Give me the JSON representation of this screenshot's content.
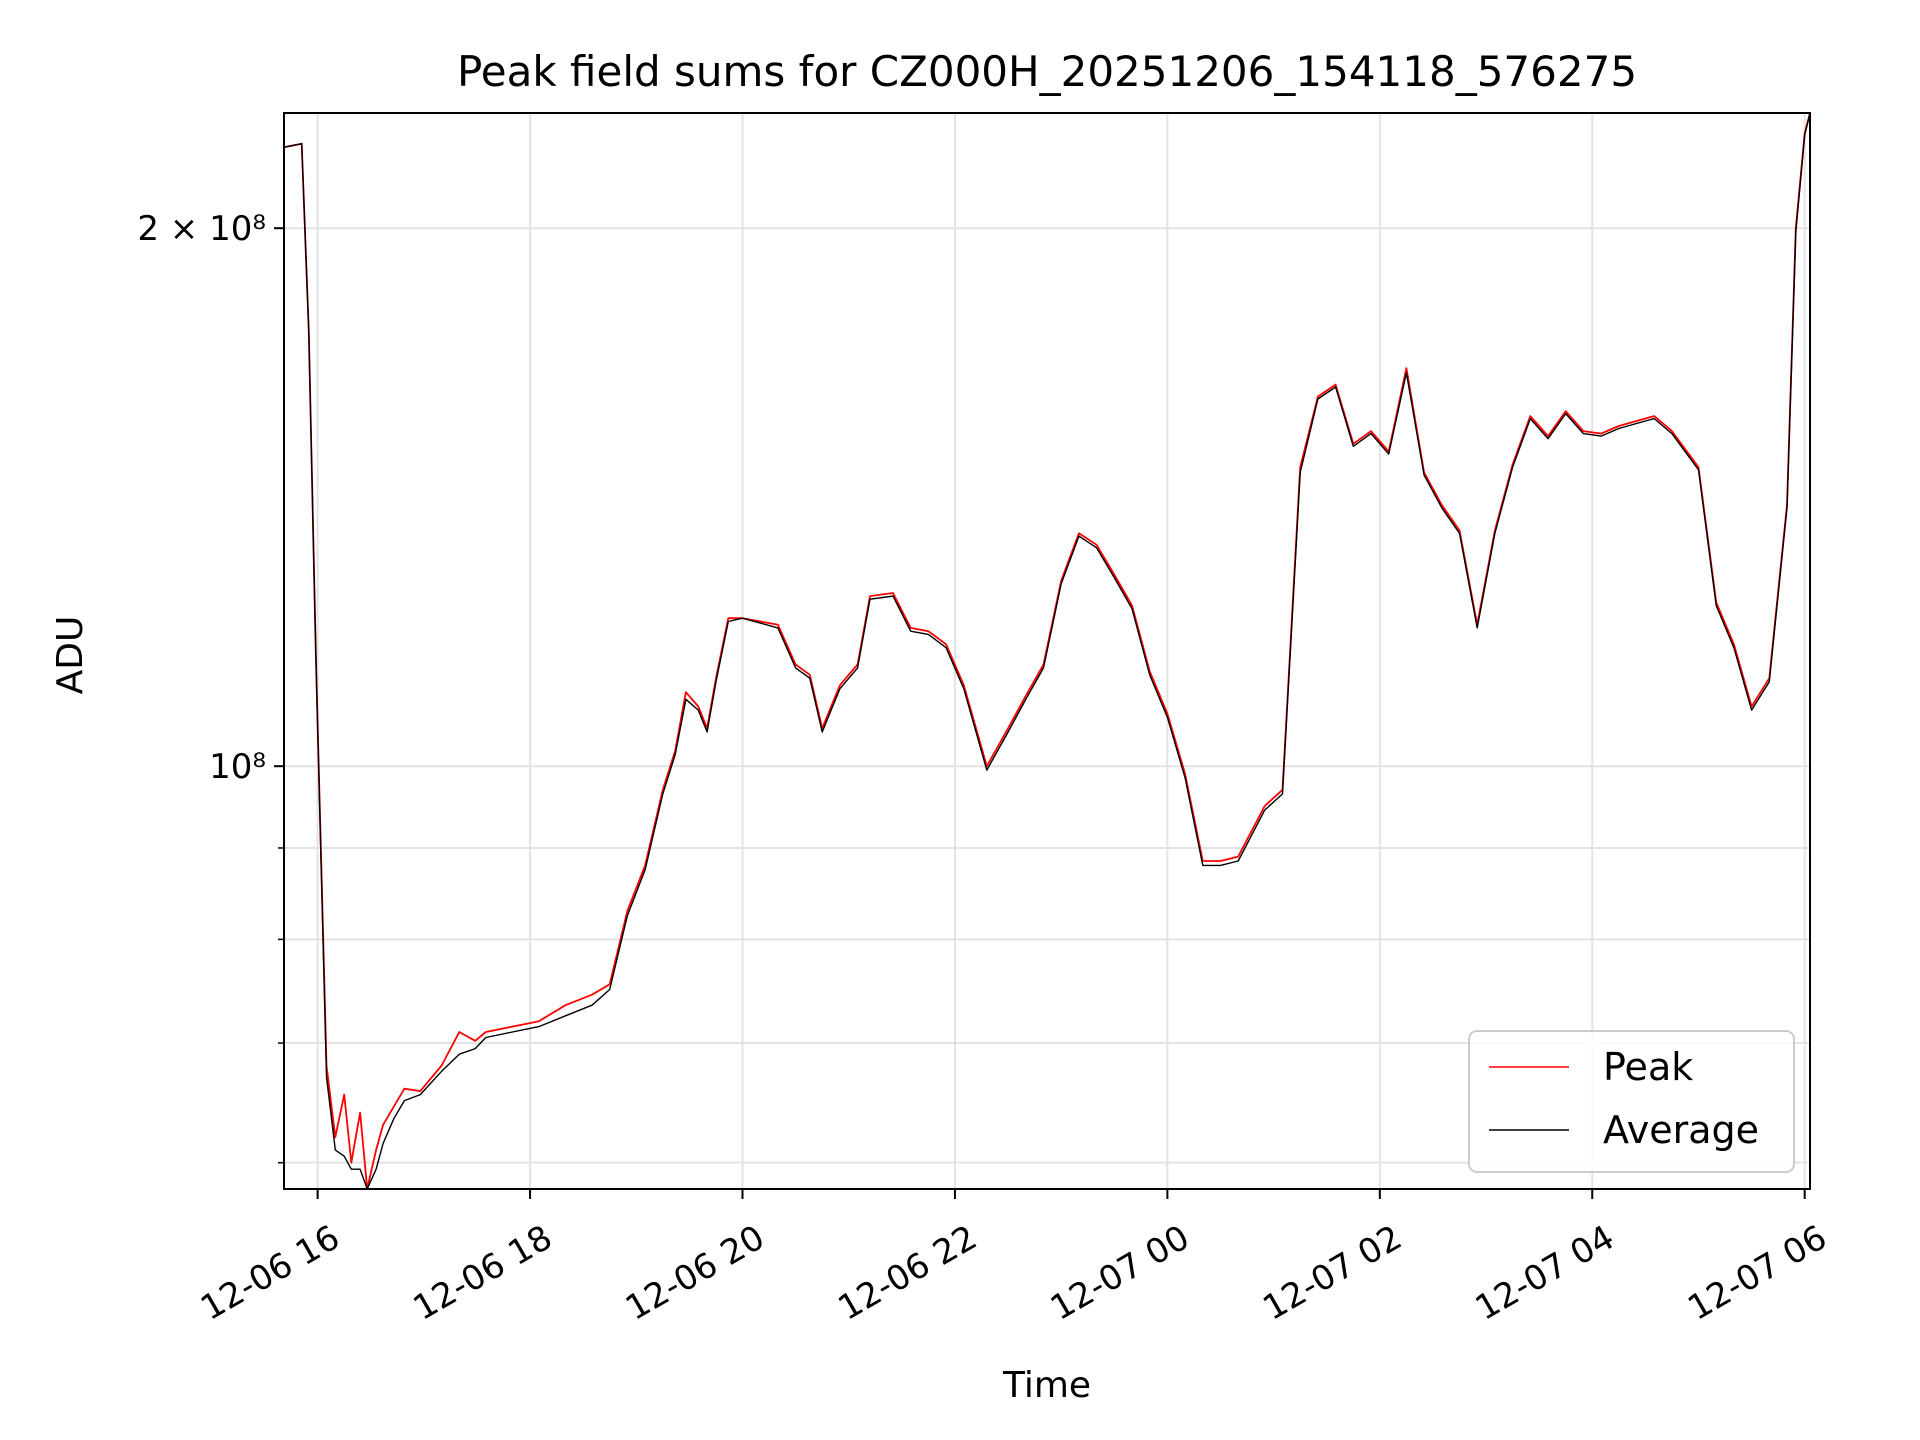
{
  "chart_data": {
    "type": "line",
    "title": "Peak field sums for CZ000H_20251206_154118_576275",
    "xlabel": "Time",
    "ylabel": "ADU",
    "x_axis": {
      "kind": "datetime",
      "range": [
        "2025-12-06T15:41",
        "2025-12-07T06:03"
      ],
      "tick_values": [
        "2025-12-06T16:00",
        "2025-12-06T18:00",
        "2025-12-06T20:00",
        "2025-12-06T22:00",
        "2025-12-07T00:00",
        "2025-12-07T02:00",
        "2025-12-07T04:00",
        "2025-12-07T06:00"
      ],
      "tick_labels": [
        "12-06 16",
        "12-06 18",
        "12-06 20",
        "12-06 22",
        "12-07 00",
        "12-07 02",
        "12-07 04",
        "12-07 06"
      ],
      "tick_rotation_deg": 30
    },
    "y_axis": {
      "scale": "log",
      "range": [
        58000000,
        232000000
      ],
      "major_ticks": [
        100000000,
        200000000
      ],
      "major_tick_labels": [
        "10⁸",
        "2 × 10⁸"
      ],
      "minor_ticks": [
        60000000,
        70000000,
        80000000,
        90000000
      ]
    },
    "grid": true,
    "legend_position": "lower-right",
    "series": [
      {
        "name": "Peak",
        "color": "#ff0000",
        "x": [
          "2025-12-06T15:41",
          "2025-12-06T15:51",
          "2025-12-06T15:55",
          "2025-12-06T15:59",
          "2025-12-06T16:05",
          "2025-12-06T16:10",
          "2025-12-06T16:15",
          "2025-12-06T16:19",
          "2025-12-06T16:24",
          "2025-12-06T16:28",
          "2025-12-06T16:33",
          "2025-12-06T16:37",
          "2025-12-06T16:43",
          "2025-12-06T16:49",
          "2025-12-06T16:58",
          "2025-12-06T17:10",
          "2025-12-06T17:20",
          "2025-12-06T17:29",
          "2025-12-06T17:35",
          "2025-12-06T17:50",
          "2025-12-06T18:05",
          "2025-12-06T18:20",
          "2025-12-06T18:35",
          "2025-12-06T18:45",
          "2025-12-06T18:55",
          "2025-12-06T19:05",
          "2025-12-06T19:15",
          "2025-12-06T19:22",
          "2025-12-06T19:28",
          "2025-12-06T19:35",
          "2025-12-06T19:40",
          "2025-12-06T19:45",
          "2025-12-06T19:52",
          "2025-12-06T20:00",
          "2025-12-06T20:20",
          "2025-12-06T20:30",
          "2025-12-06T20:38",
          "2025-12-06T20:45",
          "2025-12-06T20:55",
          "2025-12-06T21:05",
          "2025-12-06T21:12",
          "2025-12-06T21:25",
          "2025-12-06T21:35",
          "2025-12-06T21:45",
          "2025-12-06T21:55",
          "2025-12-06T22:05",
          "2025-12-06T22:18",
          "2025-12-06T22:30",
          "2025-12-06T22:40",
          "2025-12-06T22:50",
          "2025-12-06T23:00",
          "2025-12-06T23:10",
          "2025-12-06T23:20",
          "2025-12-06T23:30",
          "2025-12-06T23:40",
          "2025-12-06T23:50",
          "2025-12-07T00:00",
          "2025-12-07T00:10",
          "2025-12-07T00:20",
          "2025-12-07T00:30",
          "2025-12-07T00:40",
          "2025-12-07T00:55",
          "2025-12-07T01:05",
          "2025-12-07T01:15",
          "2025-12-07T01:25",
          "2025-12-07T01:35",
          "2025-12-07T01:45",
          "2025-12-07T01:55",
          "2025-12-07T02:05",
          "2025-12-07T02:15",
          "2025-12-07T02:25",
          "2025-12-07T02:35",
          "2025-12-07T02:45",
          "2025-12-07T02:55",
          "2025-12-07T03:05",
          "2025-12-07T03:15",
          "2025-12-07T03:25",
          "2025-12-07T03:35",
          "2025-12-07T03:45",
          "2025-12-07T03:55",
          "2025-12-07T04:05",
          "2025-12-07T04:15",
          "2025-12-07T04:25",
          "2025-12-07T04:35",
          "2025-12-07T04:45",
          "2025-12-07T05:00",
          "2025-12-07T05:10",
          "2025-12-07T05:20",
          "2025-12-07T05:30",
          "2025-12-07T05:40",
          "2025-12-07T05:50",
          "2025-12-07T05:55",
          "2025-12-07T06:00",
          "2025-12-07T06:03"
        ],
        "y": [
          222000000,
          223000000,
          175000000,
          115000000,
          68000000,
          62000000,
          65500000,
          60000000,
          64000000,
          58000000,
          61000000,
          63000000,
          64500000,
          66000000,
          65800000,
          68000000,
          71000000,
          70200000,
          71000000,
          71500000,
          72000000,
          73500000,
          74500000,
          75500000,
          83000000,
          88000000,
          97000000,
          102000000,
          110000000,
          108000000,
          105000000,
          112000000,
          121000000,
          121000000,
          120000000,
          114000000,
          112500000,
          105000000,
          111000000,
          114000000,
          124500000,
          125000000,
          119500000,
          119000000,
          117000000,
          111000000,
          100000000,
          105000000,
          109500000,
          114000000,
          127000000,
          135000000,
          133000000,
          128000000,
          123000000,
          113000000,
          107000000,
          99000000,
          88500000,
          88500000,
          89000000,
          95000000,
          97000000,
          147000000,
          161000000,
          163500000,
          151500000,
          154000000,
          150000000,
          167000000,
          146000000,
          140000000,
          135500000,
          120000000,
          135500000,
          147500000,
          157000000,
          153000000,
          158000000,
          154000000,
          153500000,
          155000000,
          156000000,
          157000000,
          154000000,
          147000000,
          123500000,
          117000000,
          108000000,
          112000000,
          140000000,
          200000000,
          226000000,
          232000000
        ]
      },
      {
        "name": "Average",
        "color": "#000000",
        "x": [
          "2025-12-06T15:41",
          "2025-12-06T15:51",
          "2025-12-06T15:55",
          "2025-12-06T15:59",
          "2025-12-06T16:05",
          "2025-12-06T16:10",
          "2025-12-06T16:15",
          "2025-12-06T16:19",
          "2025-12-06T16:24",
          "2025-12-06T16:28",
          "2025-12-06T16:33",
          "2025-12-06T16:37",
          "2025-12-06T16:43",
          "2025-12-06T16:49",
          "2025-12-06T16:58",
          "2025-12-06T17:10",
          "2025-12-06T17:20",
          "2025-12-06T17:29",
          "2025-12-06T17:35",
          "2025-12-06T17:50",
          "2025-12-06T18:05",
          "2025-12-06T18:20",
          "2025-12-06T18:35",
          "2025-12-06T18:45",
          "2025-12-06T18:55",
          "2025-12-06T19:05",
          "2025-12-06T19:15",
          "2025-12-06T19:22",
          "2025-12-06T19:28",
          "2025-12-06T19:35",
          "2025-12-06T19:40",
          "2025-12-06T19:45",
          "2025-12-06T19:52",
          "2025-12-06T20:00",
          "2025-12-06T20:20",
          "2025-12-06T20:30",
          "2025-12-06T20:38",
          "2025-12-06T20:45",
          "2025-12-06T20:55",
          "2025-12-06T21:05",
          "2025-12-06T21:12",
          "2025-12-06T21:25",
          "2025-12-06T21:35",
          "2025-12-06T21:45",
          "2025-12-06T21:55",
          "2025-12-06T22:05",
          "2025-12-06T22:18",
          "2025-12-06T22:30",
          "2025-12-06T22:40",
          "2025-12-06T22:50",
          "2025-12-06T23:00",
          "2025-12-06T23:10",
          "2025-12-06T23:20",
          "2025-12-06T23:30",
          "2025-12-06T23:40",
          "2025-12-06T23:50",
          "2025-12-07T00:00",
          "2025-12-07T00:10",
          "2025-12-07T00:20",
          "2025-12-07T00:30",
          "2025-12-07T00:40",
          "2025-12-07T00:55",
          "2025-12-07T01:05",
          "2025-12-07T01:15",
          "2025-12-07T01:25",
          "2025-12-07T01:35",
          "2025-12-07T01:45",
          "2025-12-07T01:55",
          "2025-12-07T02:05",
          "2025-12-07T02:15",
          "2025-12-07T02:25",
          "2025-12-07T02:35",
          "2025-12-07T02:45",
          "2025-12-07T02:55",
          "2025-12-07T03:05",
          "2025-12-07T03:15",
          "2025-12-07T03:25",
          "2025-12-07T03:35",
          "2025-12-07T03:45",
          "2025-12-07T03:55",
          "2025-12-07T04:05",
          "2025-12-07T04:15",
          "2025-12-07T04:25",
          "2025-12-07T04:35",
          "2025-12-07T04:45",
          "2025-12-07T05:00",
          "2025-12-07T05:10",
          "2025-12-07T05:20",
          "2025-12-07T05:30",
          "2025-12-07T05:40",
          "2025-12-07T05:50",
          "2025-12-07T05:55",
          "2025-12-07T06:00",
          "2025-12-07T06:03"
        ],
        "y": [
          222000000,
          223000000,
          175000000,
          115000000,
          67000000,
          61000000,
          60500000,
          59500000,
          59500000,
          58000000,
          59500000,
          61500000,
          63500000,
          65000000,
          65500000,
          67500000,
          69000000,
          69500000,
          70500000,
          71000000,
          71500000,
          72500000,
          73500000,
          75000000,
          82500000,
          87500000,
          96500000,
          101500000,
          109000000,
          107500000,
          104500000,
          111500000,
          120500000,
          121000000,
          119500000,
          113500000,
          112000000,
          104500000,
          110500000,
          113500000,
          124000000,
          124500000,
          119000000,
          118500000,
          116500000,
          110500000,
          99500000,
          104500000,
          109000000,
          113500000,
          126500000,
          134500000,
          132500000,
          127500000,
          122500000,
          112500000,
          106500000,
          98500000,
          88000000,
          88000000,
          88500000,
          94500000,
          96500000,
          146000000,
          160500000,
          163000000,
          151000000,
          153500000,
          149500000,
          166000000,
          145500000,
          139500000,
          135000000,
          119500000,
          135000000,
          147000000,
          156500000,
          152500000,
          157500000,
          153500000,
          153000000,
          154500000,
          155500000,
          156500000,
          153500000,
          146500000,
          123000000,
          116500000,
          107500000,
          111500000,
          139500000,
          199000000,
          225500000,
          232000000
        ]
      }
    ]
  }
}
